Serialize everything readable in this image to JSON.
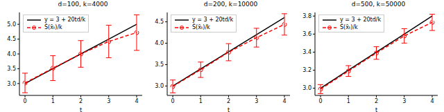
{
  "chart_data": [
    {
      "type": "line",
      "title": "d=100, k=4000",
      "x_label": "t",
      "x": [
        0,
        1,
        2,
        3,
        4
      ],
      "xlim": [
        -0.2,
        4.2
      ],
      "xticks": [
        0,
        1,
        2,
        3,
        4
      ],
      "ylim": [
        2.6,
        5.4
      ],
      "yticks": [
        {
          "value": 3,
          "label": "3.0"
        },
        3.5,
        {
          "value": 4,
          "label": "4.0"
        },
        4.5,
        {
          "value": 5,
          "label": "5.0"
        }
      ],
      "legend": "upper left",
      "grid": false,
      "series": [
        {
          "name": "y = 3 + 20td/k",
          "color": "#000000",
          "line_style": "solid",
          "values": [
            3,
            3.5,
            4,
            4.5,
            5
          ]
        },
        {
          "name": "Ŝ(x̄ₜ)/k",
          "color": "#ff0000",
          "line_style": "dashed",
          "marker": "circle",
          "values": [
            3.02,
            3.52,
            4.0,
            4.42,
            4.72
          ],
          "errors": [
            0.33,
            0.42,
            0.45,
            0.55,
            0.6
          ]
        }
      ]
    },
    {
      "type": "line",
      "title": "d=200, k=10000",
      "x_label": "t",
      "x": [
        0,
        1,
        2,
        3,
        4
      ],
      "xlim": [
        -0.2,
        4.2
      ],
      "xticks": [
        0,
        1,
        2,
        3,
        4
      ],
      "ylim": [
        2.78,
        4.72
      ],
      "yticks": [
        {
          "value": 3,
          "label": "3.0"
        },
        3.5,
        {
          "value": 4,
          "label": "4.0"
        },
        4.5
      ],
      "legend": "upper left",
      "grid": false,
      "series": [
        {
          "name": "y = 3 + 20td/k",
          "color": "#000000",
          "line_style": "solid",
          "values": [
            3,
            3.4,
            3.8,
            4.2,
            4.6
          ]
        },
        {
          "name": "Ŝ(x̄ₜ)/k",
          "color": "#ff0000",
          "line_style": "dashed",
          "marker": "circle",
          "values": [
            2.99,
            3.38,
            3.79,
            4.13,
            4.44
          ],
          "errors": [
            0.15,
            0.18,
            0.2,
            0.22,
            0.25
          ]
        }
      ]
    },
    {
      "type": "line",
      "title": "d=500, k=50000",
      "x_label": "t",
      "x": [
        0,
        1,
        2,
        3,
        4
      ],
      "xlim": [
        -0.2,
        4.2
      ],
      "xticks": [
        0,
        1,
        2,
        3,
        4
      ],
      "ylim": [
        2.92,
        3.84
      ],
      "yticks": [
        {
          "value": 3,
          "label": "3.0"
        },
        3.2,
        3.4,
        3.6,
        3.8
      ],
      "legend": "upper left",
      "grid": false,
      "series": [
        {
          "name": "y = 3 + 20td/k",
          "color": "#000000",
          "line_style": "solid",
          "values": [
            3,
            3.2,
            3.4,
            3.6,
            3.8
          ]
        },
        {
          "name": "Ŝ(x̄ₜ)/k",
          "color": "#ff0000",
          "line_style": "dashed",
          "marker": "circle",
          "values": [
            2.99,
            3.19,
            3.39,
            3.58,
            3.73
          ],
          "errors": [
            0.05,
            0.06,
            0.07,
            0.08,
            0.09
          ]
        }
      ]
    }
  ]
}
